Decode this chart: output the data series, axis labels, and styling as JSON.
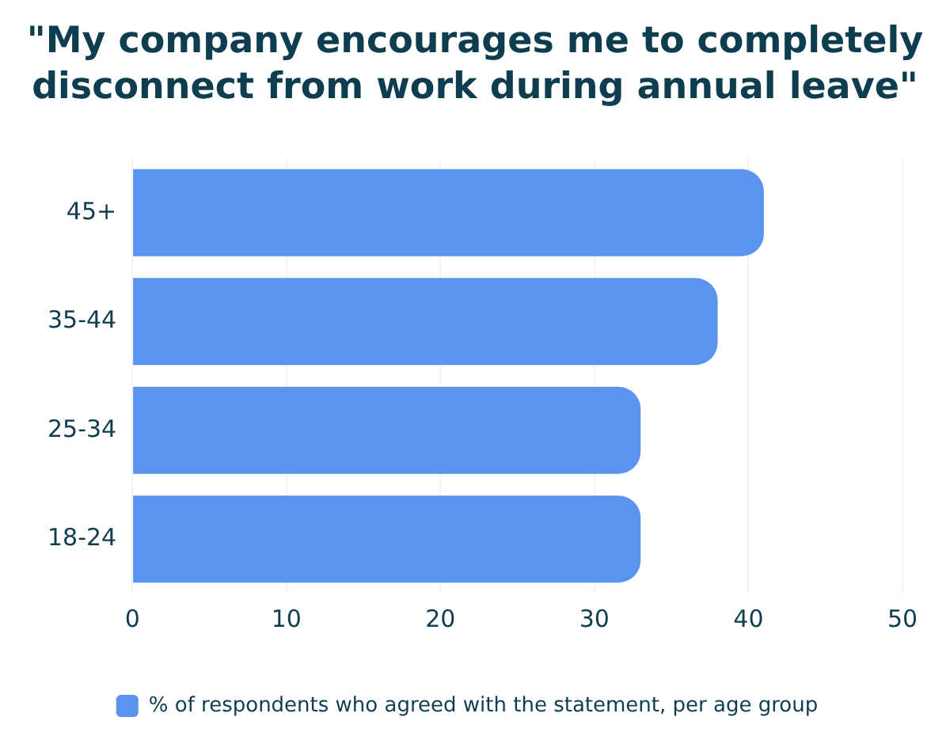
{
  "chart_data": {
    "type": "bar",
    "orientation": "horizontal",
    "title": [
      "\"My company encourages me to completely",
      "disconnect from work during annual leave\""
    ],
    "categories": [
      "45+",
      "35-44",
      "25-34",
      "18-24"
    ],
    "series": [
      {
        "name": "% of respondents who agreed with the statement, per age group",
        "color": "#5b93f0",
        "values": [
          41,
          38,
          33,
          33
        ]
      }
    ],
    "xlim": [
      0,
      50
    ],
    "xticks": [
      0,
      10,
      20,
      30,
      40,
      50
    ],
    "grid": "x",
    "legend": "bottom"
  }
}
